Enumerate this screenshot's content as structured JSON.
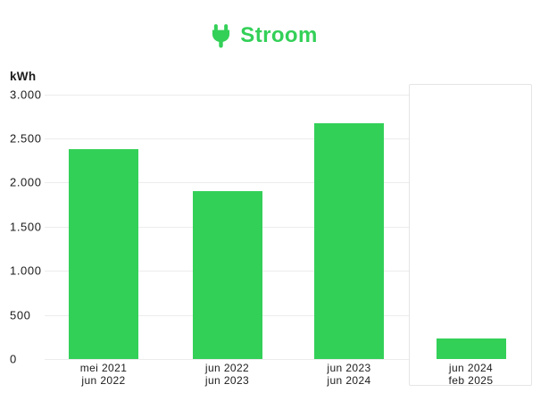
{
  "header": {
    "title": "Stroom",
    "icon": "plug-icon"
  },
  "colors": {
    "green": "#33d058",
    "grid": "#ececec",
    "text": "#1c1c1c",
    "panel_border": "#e5e5e5",
    "background": "#ffffff"
  },
  "chart_data": {
    "type": "bar",
    "title": "Stroom",
    "ylabel": "kWh",
    "xlabel": "",
    "categories": [
      {
        "line1": "mei 2021",
        "line2": "jun 2022"
      },
      {
        "line1": "jun 2022",
        "line2": "jun 2023"
      },
      {
        "line1": "jun 2023",
        "line2": "jun 2024"
      },
      {
        "line1": "jun 2024",
        "line2": "feb 2025"
      }
    ],
    "values": [
      2380,
      1900,
      2670,
      235
    ],
    "unit": "kWh",
    "ylim": [
      0,
      3000
    ],
    "yticks": [
      0,
      500,
      1000,
      1500,
      2000,
      2500,
      3000
    ],
    "ytick_labels": [
      "0",
      "500",
      "1.000",
      "1.500",
      "2.000",
      "2.500",
      "3.000"
    ],
    "grid": true,
    "legend": false,
    "bar_color": "#33d058",
    "highlighted_category_index": 3
  }
}
